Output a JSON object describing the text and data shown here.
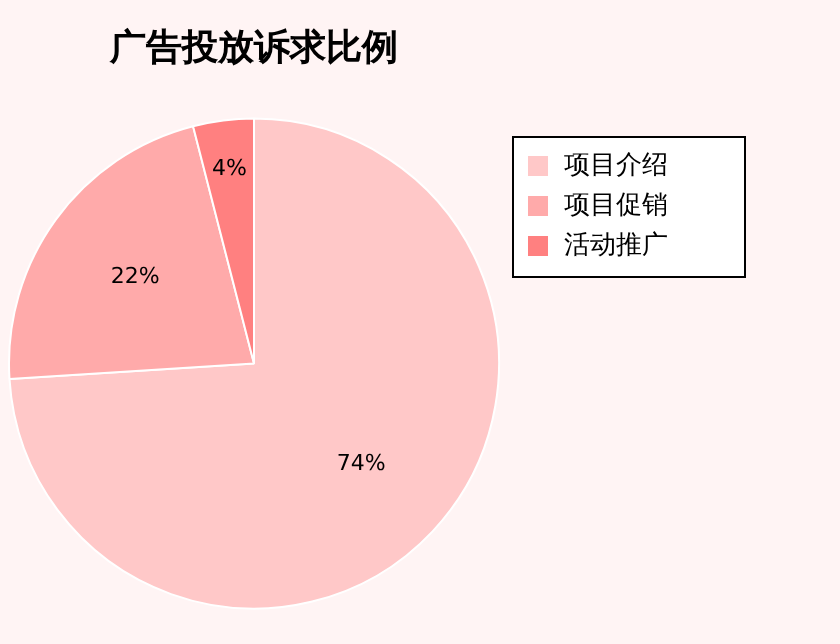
{
  "chart_data": {
    "type": "pie",
    "title": "广告投放诉求比例",
    "categories": [
      "项目介绍",
      "项目促销",
      "活动推广"
    ],
    "values": [
      74,
      22,
      4
    ],
    "colors": [
      "#ffc8c8",
      "#ffaaaa",
      "#ff8080"
    ],
    "value_labels": [
      "74%",
      "22%",
      "4%"
    ],
    "legend": "top right"
  }
}
